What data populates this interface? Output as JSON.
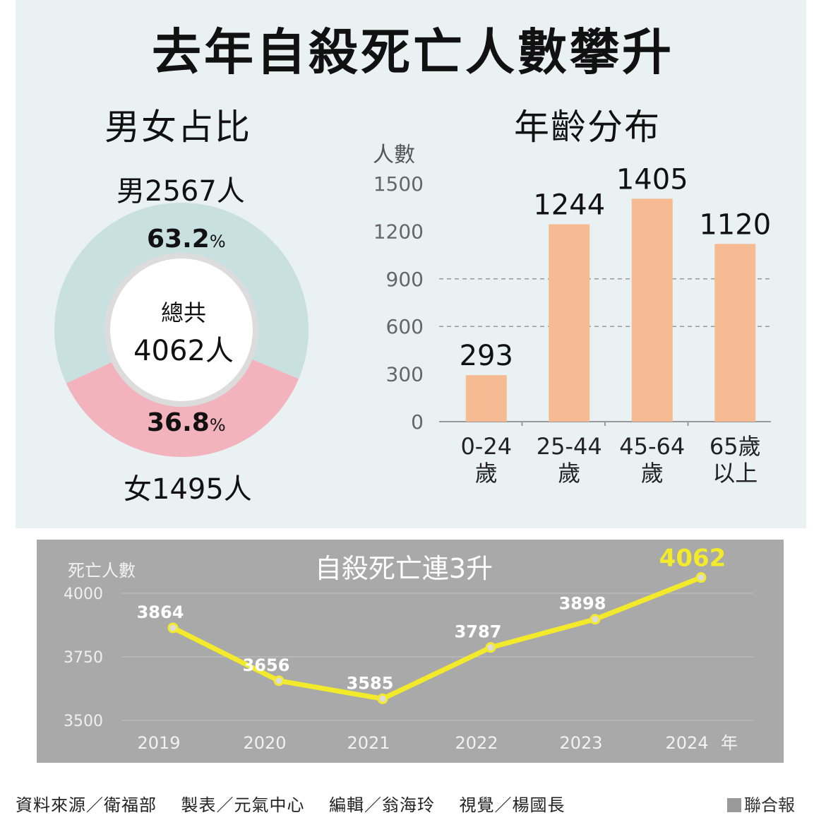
{
  "title": "去年自殺死亡人數攀升",
  "gender_section": {
    "title": "男女占比",
    "male_label": "男2567人",
    "female_label": "女1495人",
    "male_pct": "63.2",
    "female_pct": "36.8",
    "pct_unit": "%",
    "center_label": "總共",
    "center_value": "4062人"
  },
  "age_section": {
    "title": "年齡分布",
    "y_unit": "人數"
  },
  "line_section": {
    "title": "自殺死亡連3升",
    "y_unit": "死亡人數",
    "x_suffix": "年"
  },
  "footer": {
    "source": "資料來源／衛福部",
    "table": "製表／元氣中心",
    "editor": "編輯／翁海玲",
    "visual": "視覺／楊國長",
    "brand": "聯合報"
  },
  "colors": {
    "male": "#c9e0e1",
    "female": "#f2b3bd",
    "bar": "#f7bb94",
    "line": "#f2ea2a",
    "panel": "#a9a9a9"
  },
  "chart_data": [
    {
      "type": "pie",
      "title": "男女占比",
      "categories": [
        "男",
        "女"
      ],
      "values": [
        63.2,
        36.8
      ],
      "counts": [
        2567,
        1495
      ],
      "total": 4062
    },
    {
      "type": "bar",
      "title": "年齡分布",
      "ylabel": "人數",
      "categories": [
        "0-24歲",
        "25-44歲",
        "45-64歲",
        "65歲以上"
      ],
      "category_lines": [
        [
          "0-24",
          "歲"
        ],
        [
          "25-44",
          "歲"
        ],
        [
          "45-64",
          "歲"
        ],
        [
          "65歲",
          "以上"
        ]
      ],
      "values": [
        293,
        1244,
        1405,
        1120
      ],
      "ylim": [
        0,
        1500
      ],
      "yticks": [
        0,
        300,
        600,
        900,
        1200,
        1500
      ],
      "dashed_grid": [
        600,
        900
      ]
    },
    {
      "type": "line",
      "title": "自殺死亡連3升",
      "ylabel": "死亡人數",
      "x": [
        2019,
        2020,
        2021,
        2022,
        2023,
        2024
      ],
      "values": [
        3864,
        3656,
        3585,
        3787,
        3898,
        4062
      ],
      "ylim": [
        3500,
        4000
      ],
      "yticks": [
        3500,
        3750,
        4000
      ]
    }
  ]
}
